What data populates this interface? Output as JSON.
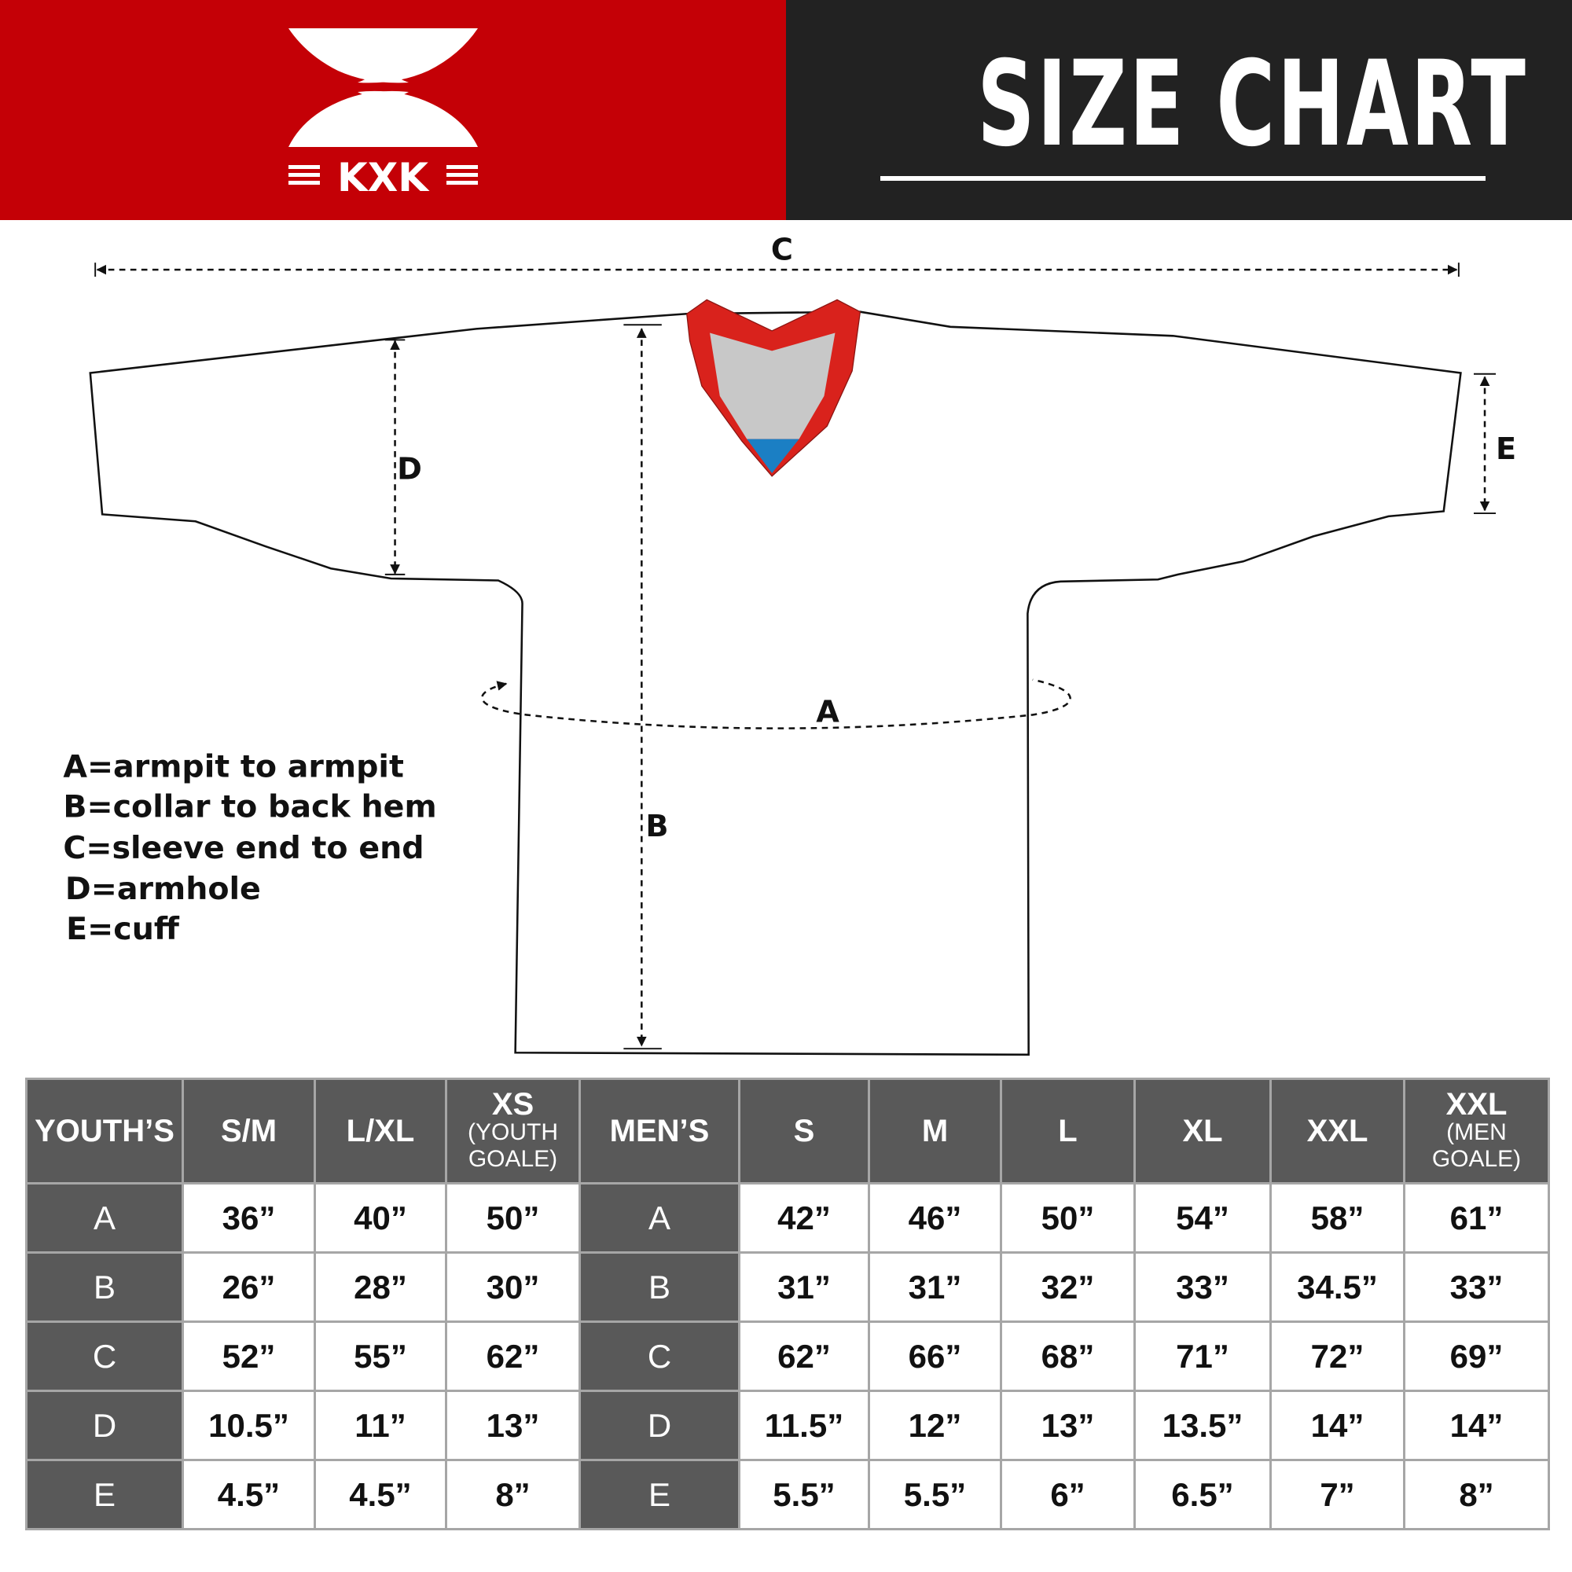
{
  "brand": {
    "logo_text": "KXK",
    "colors": {
      "header_red": "#c40006",
      "header_dark": "#222222",
      "table_header": "#595959",
      "collar_red": "#d9221c",
      "collar_grey": "#c8c8c8",
      "collar_blue": "#1b7fc4"
    }
  },
  "header": {
    "title": "SIZE CHART"
  },
  "diagram": {
    "labels": {
      "a": "A",
      "b": "B",
      "c": "C",
      "d": "D",
      "e": "E"
    },
    "legend": [
      "A=armpit to armpit",
      "B=collar to back hem",
      "C=sleeve end to end",
      "D=armhole",
      "E=cuff"
    ]
  },
  "table": {
    "columns": [
      {
        "label": "YOUTH’S",
        "sub": ""
      },
      {
        "label": "S/M",
        "sub": ""
      },
      {
        "label": "L/XL",
        "sub": ""
      },
      {
        "label": "XS",
        "sub": "(YOUTH GOALE)"
      },
      {
        "label": "MEN’S",
        "sub": ""
      },
      {
        "label": "S",
        "sub": ""
      },
      {
        "label": "M",
        "sub": ""
      },
      {
        "label": "L",
        "sub": ""
      },
      {
        "label": "XL",
        "sub": ""
      },
      {
        "label": "XXL",
        "sub": ""
      },
      {
        "label": "XXL",
        "sub": "(MEN GOALE)"
      }
    ],
    "rows": [
      [
        "A",
        "36”",
        "40”",
        "50”",
        "A",
        "42”",
        "46”",
        "50”",
        "54”",
        "58”",
        "61”"
      ],
      [
        "B",
        "26”",
        "28”",
        "30”",
        "B",
        "31”",
        "31”",
        "32”",
        "33”",
        "34.5”",
        "33”"
      ],
      [
        "C",
        "52”",
        "55”",
        "62”",
        "C",
        "62”",
        "66”",
        "68”",
        "71”",
        "72”",
        "69”"
      ],
      [
        "D",
        "10.5”",
        "11”",
        "13”",
        "D",
        "11.5”",
        "12”",
        "13”",
        "13.5”",
        "14”",
        "14”"
      ],
      [
        "E",
        "4.5”",
        "4.5”",
        "8”",
        "E",
        "5.5”",
        "5.5”",
        "6”",
        "6.5”",
        "7”",
        "8”"
      ]
    ]
  }
}
